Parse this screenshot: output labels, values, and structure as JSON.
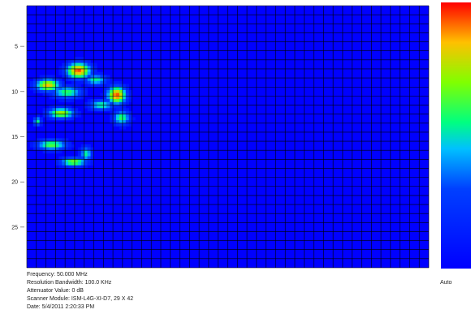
{
  "chart_data": {
    "type": "heatmap",
    "grid": {
      "cols": 42,
      "rows": 29
    },
    "y_ticks": [
      "5",
      "10",
      "15",
      "20",
      "25"
    ],
    "colormap": {
      "label": "Auto",
      "low_color": "#0000ff",
      "high_color": "#ff0000"
    },
    "hot_spots": [
      {
        "col": 5.4,
        "row": 7.2,
        "intensity": 0.95,
        "spread_x": 1.3,
        "spread_y": 0.9
      },
      {
        "col": 2.2,
        "row": 8.8,
        "intensity": 0.85,
        "spread_x": 1.3,
        "spread_y": 0.7
      },
      {
        "col": 4.2,
        "row": 9.6,
        "intensity": 0.6,
        "spread_x": 1.6,
        "spread_y": 0.7
      },
      {
        "col": 7.2,
        "row": 8.2,
        "intensity": 0.55,
        "spread_x": 1.2,
        "spread_y": 0.6
      },
      {
        "col": 9.4,
        "row": 9.9,
        "intensity": 0.95,
        "spread_x": 1.0,
        "spread_y": 1.0
      },
      {
        "col": 3.6,
        "row": 11.9,
        "intensity": 0.75,
        "spread_x": 1.4,
        "spread_y": 0.6
      },
      {
        "col": 7.8,
        "row": 11.0,
        "intensity": 0.55,
        "spread_x": 1.3,
        "spread_y": 0.6
      },
      {
        "col": 9.9,
        "row": 12.4,
        "intensity": 0.6,
        "spread_x": 0.9,
        "spread_y": 0.8
      },
      {
        "col": 1.1,
        "row": 12.8,
        "intensity": 0.55,
        "spread_x": 0.4,
        "spread_y": 0.5
      },
      {
        "col": 2.6,
        "row": 15.4,
        "intensity": 0.65,
        "spread_x": 1.6,
        "spread_y": 0.6
      },
      {
        "col": 4.9,
        "row": 17.3,
        "intensity": 0.7,
        "spread_x": 1.4,
        "spread_y": 0.5
      },
      {
        "col": 6.2,
        "row": 16.4,
        "intensity": 0.55,
        "spread_x": 0.6,
        "spread_y": 0.8
      }
    ]
  },
  "info": {
    "frequency": "Frequency: 50.000 MHz",
    "rbw": "Resolution Bandwidth: 100.0 KHz",
    "attenuator": "Attenuator Value: 0 dB",
    "scanner": "Scanner Module: ISM-L4G-XI-D7, 29 X 42",
    "date": "Date: 5/4/2011 2:20:33 PM"
  },
  "legend": {
    "auto_label": "Auto"
  }
}
